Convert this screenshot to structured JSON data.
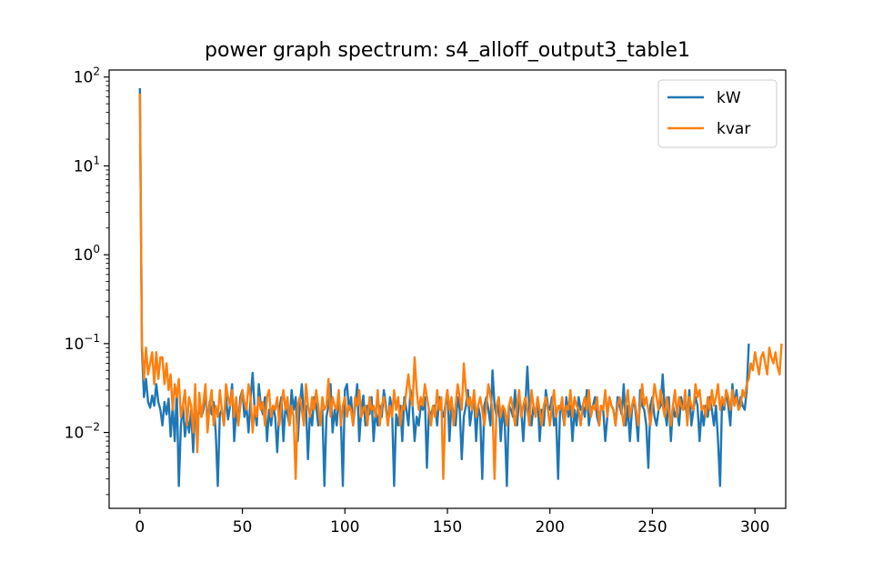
{
  "chart_data": {
    "type": "line",
    "title": "power graph spectrum: s4_alloff_output3_table1",
    "xlabel": "",
    "ylabel": "",
    "y_scale": "log",
    "xlim": [
      -15,
      315
    ],
    "ylim": [
      0.0014,
      120
    ],
    "x_ticks": [
      0,
      50,
      100,
      150,
      200,
      250,
      300
    ],
    "x_tick_labels": [
      "0",
      "50",
      "100",
      "150",
      "200",
      "250",
      "300"
    ],
    "y_ticks": [
      100,
      10,
      1,
      0.1,
      0.01
    ],
    "y_tick_labels": [
      {
        "base": "10",
        "exp": "2"
      },
      {
        "base": "10",
        "exp": "1"
      },
      {
        "base": "10",
        "exp": "0"
      },
      {
        "base": "10",
        "exp": "−1"
      },
      {
        "base": "10",
        "exp": "−2"
      }
    ],
    "legend_position": "top-right",
    "grid": false,
    "series": [
      {
        "name": "kW",
        "color": "#1f77b4",
        "x_start": 0,
        "x_step": 1,
        "values": [
          75,
          0.085,
          0.025,
          0.04,
          0.022,
          0.019,
          0.026,
          0.02,
          0.035,
          0.022,
          0.018,
          0.012,
          0.022,
          0.016,
          0.024,
          0.009,
          0.02,
          0.008,
          0.03,
          0.0025,
          0.012,
          0.02,
          0.009,
          0.015,
          0.01,
          0.018,
          0.006,
          0.022,
          0.012,
          0.02,
          0.015,
          0.018,
          0.03,
          0.012,
          0.022,
          0.016,
          0.022,
          0.01,
          0.0025,
          0.016,
          0.018,
          0.012,
          0.026,
          0.014,
          0.02,
          0.035,
          0.008,
          0.018,
          0.012,
          0.025,
          0.03,
          0.015,
          0.02,
          0.01,
          0.024,
          0.047,
          0.018,
          0.012,
          0.035,
          0.02,
          0.016,
          0.025,
          0.008,
          0.018,
          0.012,
          0.02,
          0.015,
          0.006,
          0.018,
          0.025,
          0.008,
          0.02,
          0.016,
          0.012,
          0.03,
          0.018,
          0.025,
          0.008,
          0.02,
          0.035,
          0.015,
          0.02,
          0.005,
          0.018,
          0.012,
          0.025,
          0.02,
          0.012,
          0.016,
          0.018,
          0.0025,
          0.015,
          0.02,
          0.035,
          0.01,
          0.018,
          0.012,
          0.025,
          0.015,
          0.0025,
          0.03,
          0.035,
          0.018,
          0.025,
          0.012,
          0.02,
          0.035,
          0.008,
          0.018,
          0.026,
          0.012,
          0.02,
          0.016,
          0.025,
          0.008,
          0.018,
          0.012,
          0.02,
          0.015,
          0.03,
          0.02,
          0.012,
          0.025,
          0.018,
          0.0025,
          0.016,
          0.012,
          0.02,
          0.008,
          0.025,
          0.018,
          0.012,
          0.03,
          0.02,
          0.008,
          0.015,
          0.012,
          0.02,
          0.018,
          0.025,
          0.004,
          0.018,
          0.015,
          0.02,
          0.02,
          0.012,
          0.025,
          0.018,
          0.015,
          0.02,
          0.03,
          0.008,
          0.022,
          0.016,
          0.012,
          0.025,
          0.018,
          0.005,
          0.015,
          0.02,
          0.03,
          0.012,
          0.018,
          0.025,
          0.008,
          0.02,
          0.015,
          0.003,
          0.02,
          0.025,
          0.018,
          0.012,
          0.05,
          0.02,
          0.015,
          0.025,
          0.008,
          0.018,
          0.012,
          0.0025,
          0.02,
          0.018,
          0.015,
          0.03,
          0.012,
          0.025,
          0.018,
          0.008,
          0.02,
          0.055,
          0.018,
          0.012,
          0.02,
          0.015,
          0.025,
          0.008,
          0.018,
          0.012,
          0.03,
          0.02,
          0.018,
          0.025,
          0.012,
          0.015,
          0.003,
          0.02,
          0.018,
          0.012,
          0.025,
          0.015,
          0.02,
          0.008,
          0.018,
          0.012,
          0.025,
          0.018,
          0.02,
          0.015,
          0.03,
          0.012,
          0.018,
          0.02,
          0.025,
          0.015,
          0.012,
          0.02,
          0.018,
          0.008,
          0.015,
          0.025,
          0.02,
          0.018,
          0.012,
          0.025,
          0.02,
          0.016,
          0.035,
          0.012,
          0.02,
          0.008,
          0.018,
          0.025,
          0.015,
          0.008,
          0.03,
          0.02,
          0.018,
          0.012,
          0.004,
          0.02,
          0.025,
          0.015,
          0.012,
          0.018,
          0.02,
          0.045,
          0.018,
          0.012,
          0.025,
          0.008,
          0.02,
          0.015,
          0.018,
          0.012,
          0.025,
          0.018,
          0.02,
          0.015,
          0.03,
          0.012,
          0.018,
          0.025,
          0.02,
          0.008,
          0.018,
          0.012,
          0.02,
          0.015,
          0.025,
          0.018,
          0.012,
          0.02,
          0.008,
          0.0025,
          0.025,
          0.018,
          0.03,
          0.02,
          0.012,
          0.035,
          0.02,
          0.03,
          0.018,
          0.025,
          0.02,
          0.018,
          0.03,
          0.1
        ]
      },
      {
        "name": "kvar",
        "color": "#ff7f0e",
        "x_start": 0,
        "x_step": 1,
        "values": [
          65,
          0.1,
          0.04,
          0.09,
          0.045,
          0.06,
          0.08,
          0.035,
          0.08,
          0.04,
          0.07,
          0.07,
          0.035,
          0.06,
          0.03,
          0.045,
          0.018,
          0.035,
          0.025,
          0.04,
          0.015,
          0.02,
          0.03,
          0.012,
          0.025,
          0.02,
          0.01,
          0.035,
          0.006,
          0.028,
          0.015,
          0.022,
          0.035,
          0.01,
          0.02,
          0.03,
          0.012,
          0.02,
          0.015,
          0.03,
          0.018,
          0.012,
          0.035,
          0.025,
          0.02,
          0.03,
          0.015,
          0.025,
          0.012,
          0.02,
          0.03,
          0.022,
          0.018,
          0.035,
          0.025,
          0.01,
          0.02,
          0.015,
          0.025,
          0.018,
          0.022,
          0.012,
          0.025,
          0.03,
          0.015,
          0.02,
          0.018,
          0.025,
          0.012,
          0.02,
          0.03,
          0.018,
          0.025,
          0.012,
          0.02,
          0.015,
          0.003,
          0.02,
          0.025,
          0.018,
          0.012,
          0.035,
          0.02,
          0.015,
          0.025,
          0.018,
          0.03,
          0.02,
          0.012,
          0.025,
          0.018,
          0.02,
          0.04,
          0.015,
          0.025,
          0.02,
          0.018,
          0.03,
          0.012,
          0.02,
          0.025,
          0.015,
          0.02,
          0.018,
          0.012,
          0.025,
          0.02,
          0.03,
          0.015,
          0.018,
          0.02,
          0.012,
          0.025,
          0.018,
          0.02,
          0.015,
          0.03,
          0.012,
          0.02,
          0.025,
          0.018,
          0.012,
          0.02,
          0.015,
          0.03,
          0.018,
          0.025,
          0.012,
          0.02,
          0.018,
          0.03,
          0.045,
          0.025,
          0.02,
          0.07,
          0.03,
          0.018,
          0.025,
          0.02,
          0.035,
          0.025,
          0.018,
          0.012,
          0.02,
          0.015,
          0.03,
          0.018,
          0.025,
          0.003,
          0.02,
          0.03,
          0.018,
          0.025,
          0.012,
          0.02,
          0.035,
          0.025,
          0.018,
          0.06,
          0.03,
          0.02,
          0.025,
          0.018,
          0.03,
          0.015,
          0.02,
          0.025,
          0.018,
          0.012,
          0.02,
          0.035,
          0.025,
          0.018,
          0.003,
          0.02,
          0.025,
          0.015,
          0.02,
          0.018,
          0.012,
          0.02,
          0.025,
          0.018,
          0.012,
          0.02,
          0.03,
          0.015,
          0.02,
          0.025,
          0.018,
          0.012,
          0.03,
          0.02,
          0.015,
          0.025,
          0.018,
          0.012,
          0.02,
          0.025,
          0.018,
          0.012,
          0.02,
          0.03,
          0.015,
          0.02,
          0.018,
          0.025,
          0.012,
          0.02,
          0.018,
          0.03,
          0.015,
          0.025,
          0.02,
          0.018,
          0.012,
          0.02,
          0.025,
          0.018,
          0.03,
          0.015,
          0.02,
          0.018,
          0.025,
          0.012,
          0.02,
          0.018,
          0.03,
          0.015,
          0.025,
          0.02,
          0.018,
          0.012,
          0.02,
          0.025,
          0.018,
          0.012,
          0.02,
          0.03,
          0.015,
          0.02,
          0.025,
          0.018,
          0.012,
          0.02,
          0.035,
          0.02,
          0.025,
          0.018,
          0.012,
          0.02,
          0.035,
          0.025,
          0.018,
          0.03,
          0.02,
          0.015,
          0.025,
          0.018,
          0.012,
          0.02,
          0.03,
          0.015,
          0.025,
          0.02,
          0.018,
          0.03,
          0.012,
          0.025,
          0.02,
          0.018,
          0.035,
          0.025,
          0.03,
          0.018,
          0.02,
          0.015,
          0.025,
          0.018,
          0.03,
          0.02,
          0.025,
          0.035,
          0.018,
          0.025,
          0.02,
          0.03,
          0.025,
          0.018,
          0.03,
          0.02,
          0.025,
          0.018,
          0.02,
          0.03,
          0.025,
          0.035,
          0.04,
          0.06,
          0.05,
          0.08,
          0.06,
          0.045,
          0.07,
          0.08,
          0.06,
          0.045,
          0.09,
          0.07,
          0.06,
          0.08,
          0.055,
          0.045,
          0.1
        ]
      }
    ]
  }
}
